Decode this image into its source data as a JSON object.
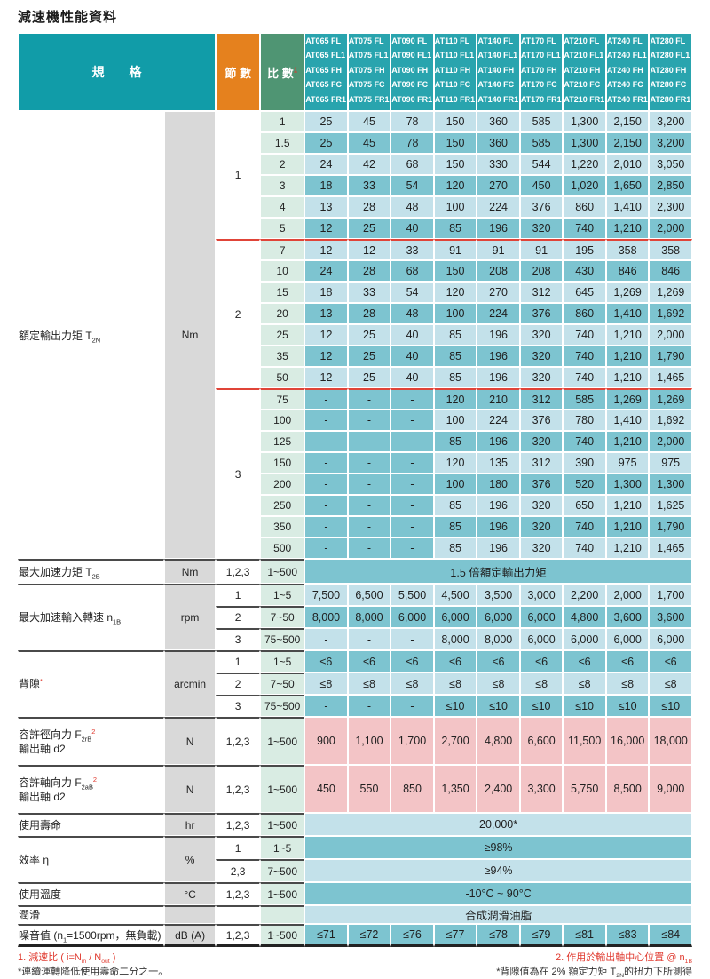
{
  "title": "減速機性能資料",
  "header": {
    "spec": "規　　格",
    "stage": "節 數",
    "ratio": "比 數",
    "ratio_sup": "1",
    "models": [
      [
        "AT065 FL",
        "AT065 FL1",
        "AT065 FH",
        "AT065 FC",
        "AT065 FR1"
      ],
      [
        "AT075 FL",
        "AT075 FL1",
        "AT075 FH",
        "AT075 FC",
        "AT075 FR1"
      ],
      [
        "AT090 FL",
        "AT090 FL1",
        "AT090 FH",
        "AT090 FC",
        "AT090 FR1"
      ],
      [
        "AT110 FL",
        "AT110 FL1",
        "AT110 FH",
        "AT110 FC",
        "AT110 FR1"
      ],
      [
        "AT140 FL",
        "AT140 FL1",
        "AT140 FH",
        "AT140 FC",
        "AT140 FR1"
      ],
      [
        "AT170 FL",
        "AT170 FL1",
        "AT170 FH",
        "AT170 FC",
        "AT170 FR1"
      ],
      [
        "AT210 FL",
        "AT210 FL1",
        "AT210 FH",
        "AT210 FC",
        "AT210 FR1"
      ],
      [
        "AT240 FL",
        "AT240 FL1",
        "AT240 FH",
        "AT240 FC",
        "AT240 FR1"
      ],
      [
        "AT280 FL",
        "AT280 FL1",
        "AT280 FH",
        "AT280 FC",
        "AT280 FR1"
      ]
    ]
  },
  "torque": {
    "label_parts": [
      {
        "t": "額定輸出力矩 T"
      },
      {
        "t": "2N",
        "sub": true
      }
    ],
    "unit": "Nm",
    "stages": [
      {
        "stage": "1",
        "rows": [
          {
            "ratio": "1",
            "values": [
              "25",
              "45",
              "78",
              "150",
              "360",
              "585",
              "1,300",
              "2,150",
              "3,200"
            ]
          },
          {
            "ratio": "1.5",
            "values": [
              "25",
              "45",
              "78",
              "150",
              "360",
              "585",
              "1,300",
              "2,150",
              "3,200"
            ]
          },
          {
            "ratio": "2",
            "values": [
              "24",
              "42",
              "68",
              "150",
              "330",
              "544",
              "1,220",
              "2,010",
              "3,050"
            ]
          },
          {
            "ratio": "3",
            "values": [
              "18",
              "33",
              "54",
              "120",
              "270",
              "450",
              "1,020",
              "1,650",
              "2,850"
            ]
          },
          {
            "ratio": "4",
            "values": [
              "13",
              "28",
              "48",
              "100",
              "224",
              "376",
              "860",
              "1,410",
              "2,300"
            ]
          },
          {
            "ratio": "5",
            "values": [
              "12",
              "25",
              "40",
              "85",
              "196",
              "320",
              "740",
              "1,210",
              "2,000"
            ]
          }
        ]
      },
      {
        "stage": "2",
        "rows": [
          {
            "ratio": "7",
            "values": [
              "12",
              "12",
              "33",
              "91",
              "91",
              "91",
              "195",
              "358",
              "358"
            ]
          },
          {
            "ratio": "10",
            "values": [
              "24",
              "28",
              "68",
              "150",
              "208",
              "208",
              "430",
              "846",
              "846"
            ]
          },
          {
            "ratio": "15",
            "values": [
              "18",
              "33",
              "54",
              "120",
              "270",
              "312",
              "645",
              "1,269",
              "1,269"
            ]
          },
          {
            "ratio": "20",
            "values": [
              "13",
              "28",
              "48",
              "100",
              "224",
              "376",
              "860",
              "1,410",
              "1,692"
            ]
          },
          {
            "ratio": "25",
            "values": [
              "12",
              "25",
              "40",
              "85",
              "196",
              "320",
              "740",
              "1,210",
              "2,000"
            ]
          },
          {
            "ratio": "35",
            "values": [
              "12",
              "25",
              "40",
              "85",
              "196",
              "320",
              "740",
              "1,210",
              "1,790"
            ]
          },
          {
            "ratio": "50",
            "values": [
              "12",
              "25",
              "40",
              "85",
              "196",
              "320",
              "740",
              "1,210",
              "1,465"
            ]
          }
        ]
      },
      {
        "stage": "3",
        "rows": [
          {
            "ratio": "75",
            "values": [
              "-",
              "-",
              "-",
              "120",
              "210",
              "312",
              "585",
              "1,269",
              "1,269"
            ]
          },
          {
            "ratio": "100",
            "values": [
              "-",
              "-",
              "-",
              "100",
              "224",
              "376",
              "780",
              "1,410",
              "1,692"
            ]
          },
          {
            "ratio": "125",
            "values": [
              "-",
              "-",
              "-",
              "85",
              "196",
              "320",
              "740",
              "1,210",
              "2,000"
            ]
          },
          {
            "ratio": "150",
            "values": [
              "-",
              "-",
              "-",
              "120",
              "135",
              "312",
              "390",
              "975",
              "975"
            ]
          },
          {
            "ratio": "200",
            "values": [
              "-",
              "-",
              "-",
              "100",
              "180",
              "376",
              "520",
              "1,300",
              "1,300"
            ]
          },
          {
            "ratio": "250",
            "values": [
              "-",
              "-",
              "-",
              "85",
              "196",
              "320",
              "650",
              "1,210",
              "1,625"
            ]
          },
          {
            "ratio": "350",
            "values": [
              "-",
              "-",
              "-",
              "85",
              "196",
              "320",
              "740",
              "1,210",
              "1,790"
            ]
          },
          {
            "ratio": "500",
            "values": [
              "-",
              "-",
              "-",
              "85",
              "196",
              "320",
              "740",
              "1,210",
              "1,465"
            ]
          }
        ]
      }
    ]
  },
  "sections": [
    {
      "id": "max-accel-torque",
      "label_parts": [
        {
          "t": "最大加速力矩 T"
        },
        {
          "t": "2B",
          "sub": true
        }
      ],
      "unit": "Nm",
      "subrows": [
        {
          "stage": "1,2,3",
          "ratio": "1~500",
          "span": "1.5 倍額定輸出力矩",
          "shade": "dark"
        }
      ]
    },
    {
      "id": "max-accel-input-speed",
      "label_parts": [
        {
          "t": "最大加速輸入轉速 n"
        },
        {
          "t": "1B",
          "sub": true
        }
      ],
      "unit": "rpm",
      "subrows": [
        {
          "stage": "1",
          "ratio": "1~5",
          "values": [
            "7,500",
            "6,500",
            "5,500",
            "4,500",
            "3,500",
            "3,000",
            "2,200",
            "2,000",
            "1,700"
          ],
          "shade": "light"
        },
        {
          "stage": "2",
          "ratio": "7~50",
          "values": [
            "8,000",
            "8,000",
            "6,000",
            "6,000",
            "6,000",
            "6,000",
            "4,800",
            "3,600",
            "3,600"
          ],
          "shade": "dark"
        },
        {
          "stage": "3",
          "ratio": "75~500",
          "values": [
            "-",
            "-",
            "-",
            "8,000",
            "8,000",
            "6,000",
            "6,000",
            "6,000",
            "6,000"
          ],
          "shade": "light"
        }
      ]
    },
    {
      "id": "backlash",
      "label_parts": [
        {
          "t": "背隙"
        },
        {
          "t": "*",
          "sup": true,
          "red": true
        }
      ],
      "unit": "arcmin",
      "subrows": [
        {
          "stage": "1",
          "ratio": "1~5",
          "values": [
            "≤6",
            "≤6",
            "≤6",
            "≤6",
            "≤6",
            "≤6",
            "≤6",
            "≤6",
            "≤6"
          ],
          "shade": "dark"
        },
        {
          "stage": "2",
          "ratio": "7~50",
          "values": [
            "≤8",
            "≤8",
            "≤8",
            "≤8",
            "≤8",
            "≤8",
            "≤8",
            "≤8",
            "≤8"
          ],
          "shade": "light"
        },
        {
          "stage": "3",
          "ratio": "75~500",
          "values": [
            "-",
            "-",
            "-",
            "≤10",
            "≤10",
            "≤10",
            "≤10",
            "≤10",
            "≤10"
          ],
          "shade": "dark"
        }
      ]
    },
    {
      "id": "radial-force",
      "label_parts": [
        {
          "t": "容許徑向力 F"
        },
        {
          "t": "2rB",
          "sub": true
        },
        {
          "t": "2",
          "sup": true,
          "red": true
        }
      ],
      "label2": "輸出軸 d2",
      "unit": "N",
      "subrows": [
        {
          "stage": "1,2,3",
          "ratio": "1~500",
          "values": [
            "900",
            "1,100",
            "1,700",
            "2,700",
            "4,800",
            "6,600",
            "11,500",
            "16,000",
            "18,000"
          ],
          "shade": "pink"
        }
      ]
    },
    {
      "id": "axial-force",
      "label_parts": [
        {
          "t": "容許軸向力 F"
        },
        {
          "t": "2aB",
          "sub": true
        },
        {
          "t": "2",
          "sup": true,
          "red": true
        }
      ],
      "label2": "輸出軸 d2",
      "unit": "N",
      "subrows": [
        {
          "stage": "1,2,3",
          "ratio": "1~500",
          "values": [
            "450",
            "550",
            "850",
            "1,350",
            "2,400",
            "3,300",
            "5,750",
            "8,500",
            "9,000"
          ],
          "shade": "pink"
        }
      ]
    },
    {
      "id": "service-life",
      "label_parts": [
        {
          "t": "使用壽命"
        }
      ],
      "unit": "hr",
      "subrows": [
        {
          "stage": "1,2,3",
          "ratio": "1~500",
          "span": "20,000*",
          "shade": "light"
        }
      ]
    },
    {
      "id": "efficiency",
      "label_parts": [
        {
          "t": "效率 η"
        }
      ],
      "unit": "%",
      "subrows": [
        {
          "stage": "1",
          "ratio": "1~5",
          "span": "≥98%",
          "shade": "dark"
        },
        {
          "stage": "2,3",
          "ratio": "7~500",
          "span": "≥94%",
          "shade": "light"
        }
      ]
    },
    {
      "id": "operating-temp",
      "label_parts": [
        {
          "t": "使用溫度"
        }
      ],
      "unit": "°C",
      "subrows": [
        {
          "stage": "1,2,3",
          "ratio": "1~500",
          "span": "-10°C ~ 90°C",
          "shade": "dark"
        }
      ]
    },
    {
      "id": "lubrication",
      "label_parts": [
        {
          "t": "潤滑"
        }
      ],
      "unit": "",
      "subrows": [
        {
          "stage": "",
          "ratio": "",
          "span": "合成潤滑油脂",
          "shade": "light"
        }
      ]
    },
    {
      "id": "noise",
      "label_parts": [
        {
          "t": "噪音值 (n"
        },
        {
          "t": "1",
          "sub": true
        },
        {
          "t": "=1500rpm，無負載)"
        }
      ],
      "unit": "dB (A)",
      "subrows": [
        {
          "stage": "1,2,3",
          "ratio": "1~500",
          "values": [
            "≤71",
            "≤72",
            "≤76",
            "≤77",
            "≤78",
            "≤79",
            "≤81",
            "≤83",
            "≤84"
          ],
          "shade": "dark"
        }
      ]
    }
  ],
  "footnotes": {
    "left1_parts": [
      {
        "t": "1. 減速比 ( i=N",
        "red": true
      },
      {
        "t": "in",
        "sub": true,
        "red": true
      },
      {
        "t": " / N",
        "red": true
      },
      {
        "t": "out",
        "sub": true,
        "red": true
      },
      {
        "t": " )",
        "red": true
      }
    ],
    "left2_parts": [
      {
        "t": "*連續運轉降低使用壽命二分之一。"
      }
    ],
    "right1_parts": [
      {
        "t": "2. 作用於輸出軸中心位置 @ n",
        "red": true
      },
      {
        "t": "1B",
        "sub": true,
        "red": true
      }
    ],
    "right2_parts": [
      {
        "t": "*背隙值為在 2% 額定力矩 T"
      },
      {
        "t": "2N",
        "sub": true
      },
      {
        "t": "的扭力下所測得"
      }
    ]
  },
  "colors": {
    "teal_header": "#119CA8",
    "model_header": "#29A4AE",
    "orange": "#E5811E",
    "green": "#4F9573",
    "pale_green": "#D9ECE3",
    "light_blue": "#C3E1EA",
    "dark_teal": "#7DC4D0",
    "pink": "#F3C4C6",
    "gray_unit": "#D9D9D9",
    "red_line": "#E04438",
    "red_text": "#E03A2F"
  }
}
